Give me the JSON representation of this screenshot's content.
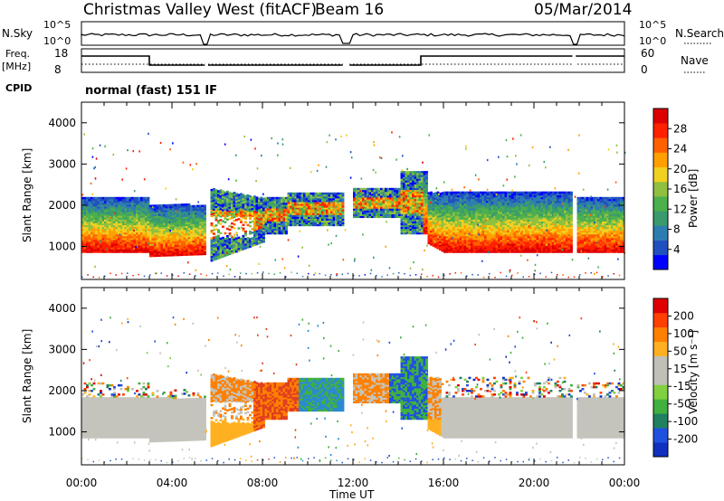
{
  "header": {
    "station": "Christmas Valley West (fitACF)",
    "beam": "Beam 16",
    "date": "05/Mar/2014"
  },
  "status_panels": {
    "nsky_label": "N.Sky",
    "nsearch_label": "N.Search",
    "nsky_ticks": [
      "10^5",
      "10^0"
    ],
    "nsearch_ticks": [
      "10^5",
      "10^0"
    ],
    "freq_label": "Freq.",
    "freq_unit": "[MHz]",
    "freq_ticks": [
      "18",
      "8"
    ],
    "nave_label": "Nave",
    "nave_ticks": [
      "60",
      "0"
    ],
    "cpid_label": "CPID",
    "cpid_value": "normal (fast) 151 IF"
  },
  "chart_data": [
    {
      "type": "heatmap",
      "name": "power",
      "ylabel": "Slant Range [km]",
      "xlabel": "Time UT",
      "xlim_hours": [
        0,
        24
      ],
      "ylim_km": [
        200,
        4500
      ],
      "yticks": [
        "4000",
        "3000",
        "2000",
        "1000"
      ],
      "colorbar_label": "Power [dB]",
      "colorbar_ticks": [
        "28",
        "24",
        "20",
        "16",
        "12",
        "8",
        "4"
      ],
      "colorbar_colors": [
        "#0000ff",
        "#2050c0",
        "#2e7db0",
        "#3a9a6e",
        "#4cb04c",
        "#90c040",
        "#f0d020",
        "#ffa000",
        "#ff6000",
        "#ff2000",
        "#dd0000"
      ]
    },
    {
      "type": "heatmap",
      "name": "velocity",
      "ylabel": "Slant Range [km]",
      "xlabel": "Time UT",
      "xlim_hours": [
        0,
        24
      ],
      "ylim_km": [
        200,
        4500
      ],
      "yticks": [
        "4000",
        "3000",
        "2000",
        "1000"
      ],
      "colorbar_label": "Velocity [m s⁻¹]",
      "colorbar_ticks": [
        "200",
        "100",
        "50",
        "15",
        "-15",
        "-50",
        "-100",
        "-200"
      ],
      "colorbar_colors": [
        "#1030c0",
        "#2050e0",
        "#208060",
        "#40b040",
        "#80d040",
        "#c0c0b8",
        "#c0c0b8",
        "#ffb020",
        "#ff8000",
        "#ff4000",
        "#e00000"
      ]
    }
  ],
  "x_axis": {
    "ticks": [
      "00:00",
      "04:00",
      "08:00",
      "12:00",
      "16:00",
      "20:00",
      "00:00"
    ],
    "label": "Time UT"
  }
}
